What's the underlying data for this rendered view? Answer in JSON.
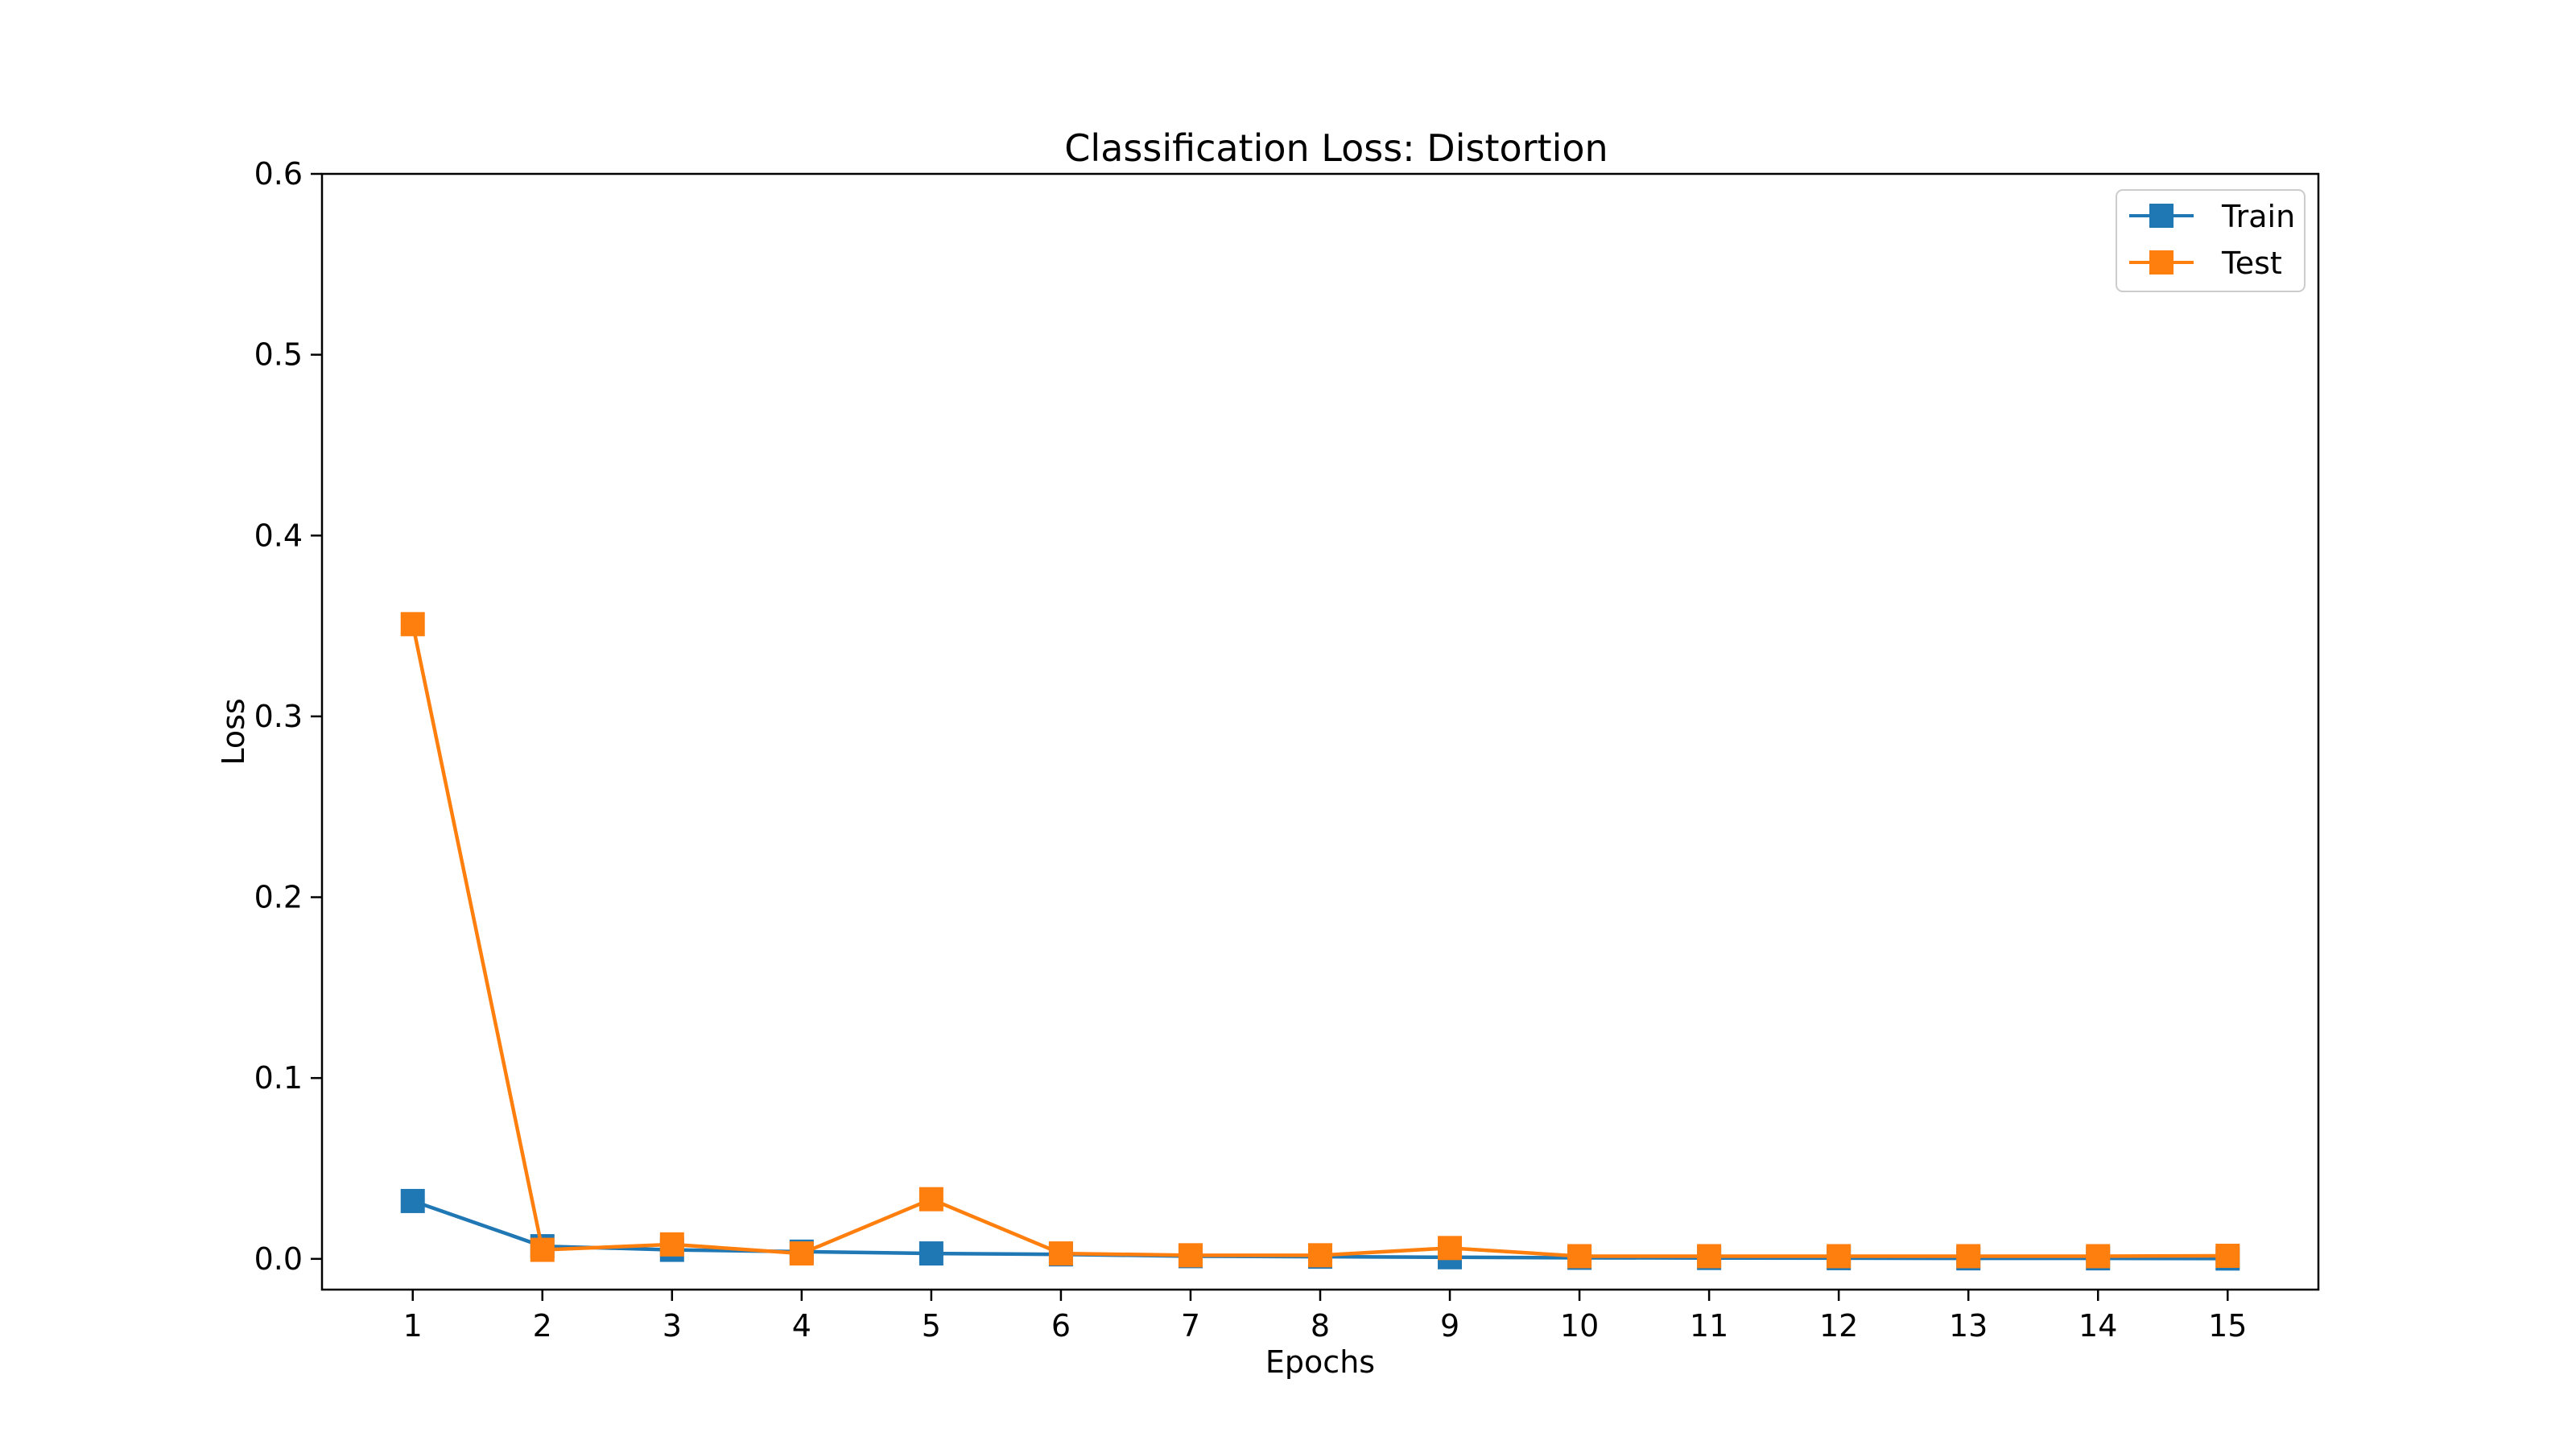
{
  "chart_data": {
    "type": "line",
    "title": "Classification Loss: Distortion",
    "xlabel": "Epochs",
    "ylabel": "Loss",
    "x": [
      1,
      2,
      3,
      4,
      5,
      6,
      7,
      8,
      9,
      10,
      11,
      12,
      13,
      14,
      15
    ],
    "xticks": [
      "1",
      "2",
      "3",
      "4",
      "5",
      "6",
      "7",
      "8",
      "9",
      "10",
      "11",
      "12",
      "13",
      "14",
      "15"
    ],
    "ylim": [
      -0.017,
      0.6
    ],
    "yticks": [
      0.0,
      0.1,
      0.2,
      0.3,
      0.4,
      0.5,
      0.6
    ],
    "ytick_labels": [
      "0.0",
      "0.1",
      "0.2",
      "0.3",
      "0.4",
      "0.5",
      "0.6"
    ],
    "grid": false,
    "legend_position": "top-right",
    "series": [
      {
        "name": "Train",
        "color": "#1f77b4",
        "marker": "square",
        "values": [
          0.032,
          0.007,
          0.005,
          0.004,
          0.003,
          0.0025,
          0.0015,
          0.0012,
          0.0009,
          0.0006,
          0.0005,
          0.0004,
          0.0003,
          0.0003,
          0.0002
        ]
      },
      {
        "name": "Test",
        "color": "#ff7f0e",
        "marker": "square",
        "values": [
          0.351,
          0.005,
          0.008,
          0.003,
          0.033,
          0.003,
          0.002,
          0.002,
          0.006,
          0.0015,
          0.0015,
          0.0015,
          0.0015,
          0.0015,
          0.0017
        ]
      }
    ]
  }
}
